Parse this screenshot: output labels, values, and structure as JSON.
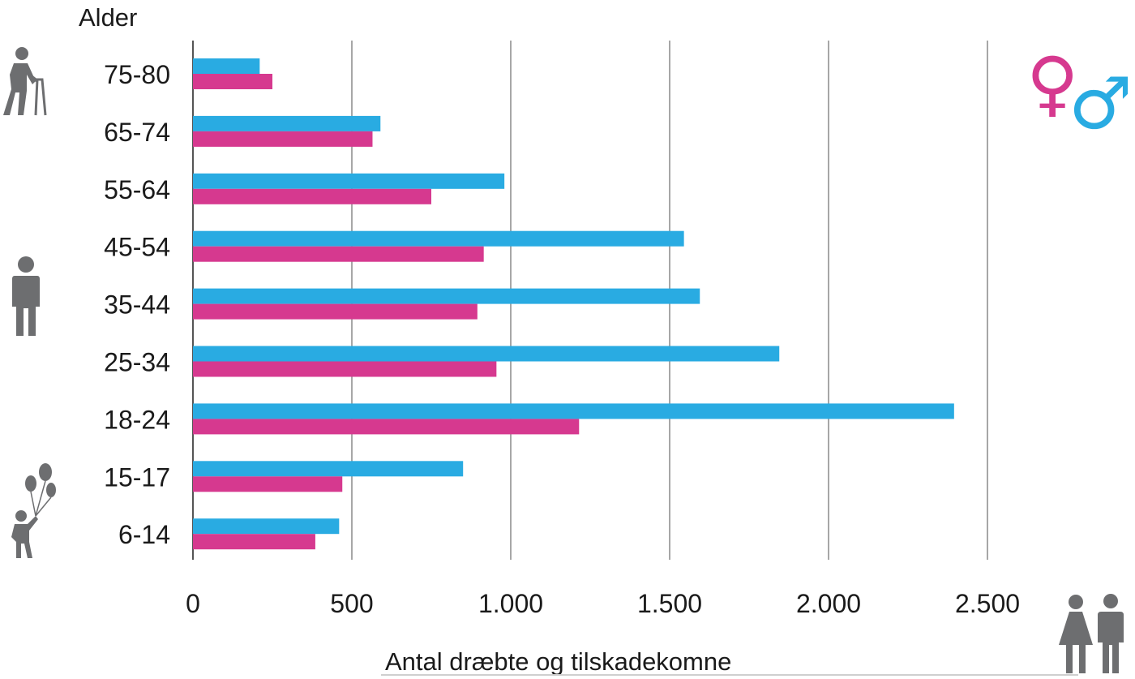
{
  "chart_data": {
    "type": "bar",
    "orientation": "horizontal",
    "y_title": "Alder",
    "xlabel": "Antal dræbte og tilskadekomne",
    "categories": [
      "75-80",
      "65-74",
      "55-64",
      "45-54",
      "35-44",
      "25-34",
      "18-24",
      "15-17",
      "6-14"
    ],
    "series": [
      {
        "symbol": "♂",
        "color": "#29abe2",
        "values": [
          210,
          590,
          980,
          1545,
          1595,
          1845,
          2395,
          850,
          460
        ]
      },
      {
        "symbol": "♀",
        "color": "#d6398f",
        "values": [
          250,
          565,
          750,
          915,
          895,
          955,
          1215,
          470,
          385
        ]
      }
    ],
    "xlim": [
      0,
      2800
    ],
    "x_ticks": [
      0,
      500,
      1000,
      1500,
      2000,
      2500
    ],
    "x_tick_labels": [
      "0",
      "500",
      "1.000",
      "1.500",
      "2.000",
      "2.500"
    ],
    "grid": "vertical",
    "legend": "top-right",
    "icons": [
      "elderly-walker-icon",
      "adult-person-icon",
      "child-balloons-icon",
      "woman-man-icon"
    ]
  }
}
